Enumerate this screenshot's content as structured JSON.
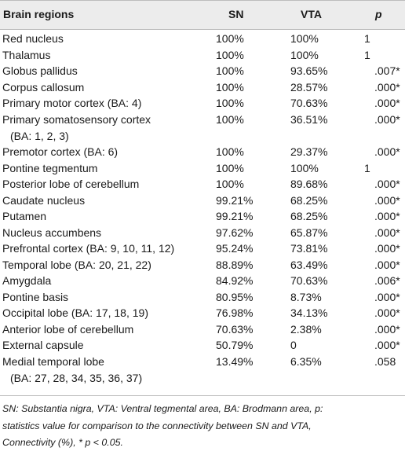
{
  "table": {
    "headers": {
      "region": "Brain regions",
      "sn": "SN",
      "vta": "VTA",
      "p": "p"
    },
    "rows": [
      {
        "region": "Red nucleus",
        "sn": "100%",
        "vta": "100%",
        "p": "1"
      },
      {
        "region": "Thalamus",
        "sn": "100%",
        "vta": "100%",
        "p": "1"
      },
      {
        "region": "Globus pallidus",
        "sn": "100%",
        "vta": "93.65%",
        "p": ".007*"
      },
      {
        "region": "Corpus callosum",
        "sn": "100%",
        "vta": "28.57%",
        "p": ".000*"
      },
      {
        "region": "Primary motor cortex (BA: 4)",
        "sn": "100%",
        "vta": "70.63%",
        "p": ".000*"
      },
      {
        "region": "Primary somatosensory cortex",
        "region_cont": "(BA: 1, 2, 3)",
        "sn": "100%",
        "vta": "36.51%",
        "p": ".000*"
      },
      {
        "region": "Premotor cortex (BA: 6)",
        "sn": "100%",
        "vta": "29.37%",
        "p": ".000*"
      },
      {
        "region": "Pontine tegmentum",
        "sn": "100%",
        "vta": "100%",
        "p": "1"
      },
      {
        "region": "Posterior lobe of cerebellum",
        "sn": "100%",
        "vta": "89.68%",
        "p": ".000*"
      },
      {
        "region": "Caudate nucleus",
        "sn": "99.21%",
        "vta": "68.25%",
        "p": ".000*"
      },
      {
        "region": "Putamen",
        "sn": "99.21%",
        "vta": "68.25%",
        "p": ".000*"
      },
      {
        "region": "Nucleus accumbens",
        "sn": "97.62%",
        "vta": "65.87%",
        "p": ".000*"
      },
      {
        "region": "Prefrontal cortex (BA: 9, 10, 11, 12)",
        "sn": "95.24%",
        "vta": "73.81%",
        "p": ".000*"
      },
      {
        "region": "Temporal lobe (BA: 20, 21, 22)",
        "sn": "88.89%",
        "vta": "63.49%",
        "p": ".000*"
      },
      {
        "region": "Amygdala",
        "sn": "84.92%",
        "vta": "70.63%",
        "p": ".006*"
      },
      {
        "region": "Pontine basis",
        "sn": "80.95%",
        "vta": "8.73%",
        "p": ".000*"
      },
      {
        "region": "Occipital lobe (BA: 17, 18, 19)",
        "sn": "76.98%",
        "vta": "34.13%",
        "p": ".000*"
      },
      {
        "region": "Anterior lobe of cerebellum",
        "sn": "70.63%",
        "vta": "2.38%",
        "p": ".000*"
      },
      {
        "region": "External capsule",
        "sn": "50.79%",
        "vta": "0",
        "p": ".000*"
      },
      {
        "region": "Medial temporal lobe",
        "region_cont": "(BA: 27, 28, 34, 35, 36, 37)",
        "sn": "13.49%",
        "vta": "6.35%",
        "p": ".058"
      }
    ]
  },
  "footnote": {
    "line1": "SN: Substantia nigra, VTA: Ventral tegmental area, BA: Brodmann area, p:",
    "line2": "statistics value for comparison to the connectivity between SN and VTA,",
    "line3": "Connectivity (%), * p < 0.05."
  }
}
